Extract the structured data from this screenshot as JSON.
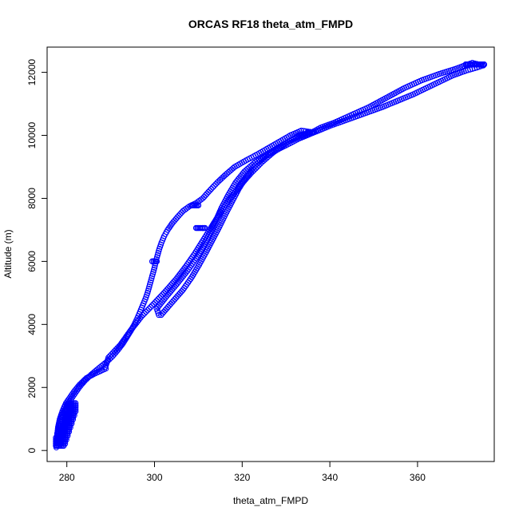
{
  "chart_data": {
    "type": "scatter",
    "title": "ORCAS RF18 theta_atm_FMPD",
    "xlabel": "theta_atm_FMPD",
    "ylabel": "Altitude (m)",
    "xlim": [
      275.5,
      377.5
    ],
    "ylim": [
      -350,
      12800
    ],
    "xticks": [
      280,
      300,
      320,
      340,
      360
    ],
    "yticks": [
      0,
      2000,
      4000,
      6000,
      8000,
      10000,
      12000
    ],
    "marker": "open-circle",
    "point_color": "#0000ff",
    "grid": false,
    "series": [
      {
        "points": [
          [
            277.6,
            100
          ],
          [
            277.7,
            250
          ],
          [
            277.8,
            400
          ],
          [
            277.9,
            600
          ],
          [
            278.2,
            800
          ],
          [
            278.6,
            1000
          ],
          [
            279.2,
            1200
          ],
          [
            279.9,
            1400
          ],
          [
            280.8,
            1600
          ],
          [
            281.8,
            1800
          ],
          [
            282.8,
            2000
          ],
          [
            284.0,
            2200
          ],
          [
            285.5,
            2400
          ],
          [
            287.2,
            2600
          ],
          [
            289.0,
            2800
          ],
          [
            290.5,
            3000
          ],
          [
            291.7,
            3200
          ],
          [
            292.8,
            3400
          ],
          [
            293.7,
            3600
          ],
          [
            294.6,
            3800
          ],
          [
            295.4,
            4000
          ],
          [
            296.1,
            4200
          ],
          [
            296.7,
            4400
          ],
          [
            297.3,
            4600
          ],
          [
            297.9,
            4800
          ],
          [
            298.4,
            5000
          ],
          [
            298.8,
            5200
          ],
          [
            299.2,
            5400
          ],
          [
            299.6,
            5600
          ],
          [
            300.0,
            5800
          ],
          [
            300.3,
            6000
          ],
          [
            300.7,
            6200
          ],
          [
            301.1,
            6400
          ],
          [
            301.6,
            6600
          ],
          [
            302.2,
            6800
          ],
          [
            303.0,
            7000
          ],
          [
            304.0,
            7200
          ],
          [
            305.2,
            7400
          ],
          [
            306.5,
            7600
          ],
          [
            308.0,
            7750
          ],
          [
            309.5,
            7850
          ],
          [
            311.0,
            8000
          ],
          [
            312.6,
            8250
          ],
          [
            314.3,
            8500
          ],
          [
            316.2,
            8750
          ],
          [
            318.3,
            9000
          ],
          [
            320.8,
            9200
          ],
          [
            323.5,
            9400
          ],
          [
            326.0,
            9600
          ],
          [
            328.5,
            9800
          ],
          [
            331.0,
            10000
          ],
          [
            333.5,
            10150
          ],
          [
            336.0,
            10100
          ],
          [
            338.0,
            10250
          ],
          [
            341.0,
            10400
          ],
          [
            345.0,
            10650
          ],
          [
            349.0,
            10900
          ],
          [
            353.0,
            11200
          ],
          [
            357.0,
            11500
          ],
          [
            361.0,
            11750
          ],
          [
            365.0,
            11950
          ],
          [
            368.5,
            12100
          ],
          [
            371.0,
            12230
          ],
          [
            372.5,
            12300
          ],
          [
            374.0,
            12250
          ],
          [
            375.0,
            12220
          ]
        ]
      },
      {
        "points": [
          [
            375.0,
            12220
          ],
          [
            373.5,
            12150
          ],
          [
            371.0,
            12050
          ],
          [
            368.0,
            11900
          ],
          [
            365.0,
            11700
          ],
          [
            362.0,
            11500
          ],
          [
            359.0,
            11300
          ],
          [
            355.5,
            11100
          ],
          [
            352.0,
            10900
          ],
          [
            348.0,
            10700
          ],
          [
            344.0,
            10500
          ],
          [
            340.0,
            10300
          ],
          [
            336.5,
            10100
          ],
          [
            333.0,
            9900
          ],
          [
            329.5,
            9650
          ],
          [
            326.0,
            9400
          ],
          [
            323.0,
            9150
          ],
          [
            320.5,
            8850
          ],
          [
            318.5,
            8500
          ],
          [
            316.8,
            8100
          ],
          [
            315.3,
            7700
          ],
          [
            314.0,
            7300
          ],
          [
            312.6,
            6900
          ],
          [
            311.2,
            6500
          ],
          [
            309.5,
            6100
          ],
          [
            307.5,
            5700
          ],
          [
            305.2,
            5300
          ],
          [
            302.8,
            4900
          ],
          [
            300.5,
            4500
          ],
          [
            301.0,
            4300
          ]
        ]
      },
      {
        "points": [
          [
            301.5,
            4300
          ],
          [
            304.0,
            4700
          ],
          [
            306.5,
            5100
          ],
          [
            308.5,
            5500
          ],
          [
            310.2,
            5900
          ],
          [
            311.8,
            6300
          ],
          [
            313.3,
            6700
          ],
          [
            314.8,
            7100
          ],
          [
            316.2,
            7500
          ],
          [
            317.7,
            7900
          ],
          [
            319.2,
            8300
          ],
          [
            321.0,
            8700
          ],
          [
            323.0,
            9050
          ],
          [
            325.5,
            9350
          ],
          [
            328.0,
            9600
          ],
          [
            330.5,
            9800
          ],
          [
            333.0,
            9950
          ],
          [
            335.5,
            10050
          ]
        ]
      },
      {
        "points": [
          [
            336.0,
            10100
          ],
          [
            333.0,
            10000
          ],
          [
            330.0,
            9750
          ],
          [
            327.0,
            9450
          ],
          [
            324.5,
            9150
          ],
          [
            322.0,
            8800
          ],
          [
            319.5,
            8400
          ],
          [
            317.0,
            7950
          ],
          [
            314.8,
            7500
          ],
          [
            312.8,
            7050
          ],
          [
            311.0,
            6650
          ],
          [
            309.2,
            6250
          ],
          [
            307.2,
            5850
          ],
          [
            305.0,
            5450
          ],
          [
            302.5,
            5050
          ],
          [
            299.8,
            4650
          ],
          [
            297.0,
            4250
          ],
          [
            294.5,
            3800
          ],
          [
            292.2,
            3350
          ],
          [
            289.5,
            2950
          ],
          [
            288.8,
            2650
          ]
        ]
      },
      {
        "points": [
          [
            288.9,
            2600
          ],
          [
            286.5,
            2450
          ],
          [
            284.5,
            2300
          ],
          [
            283.0,
            2100
          ],
          [
            281.8,
            1900
          ],
          [
            280.8,
            1700
          ],
          [
            279.8,
            1500
          ],
          [
            279.0,
            1250
          ],
          [
            278.4,
            1000
          ],
          [
            278.0,
            750
          ],
          [
            277.8,
            500
          ],
          [
            277.7,
            300
          ],
          [
            277.6,
            150
          ]
        ]
      }
    ],
    "clusters": [
      {
        "x": [
          309.5,
          311.5
        ],
        "y": 7060
      },
      {
        "x": [
          277.5,
          282.0
        ],
        "y": [
          150,
          1500
        ]
      },
      {
        "x": [
          335.0,
          336.2
        ],
        "y": 10100
      },
      {
        "x": [
          371.0,
          375.2
        ],
        "y": 12250
      },
      {
        "x": [
          308.5,
          310.0
        ],
        "y": 7780
      },
      {
        "x": [
          299.5,
          300.5
        ],
        "y": 6000
      }
    ]
  }
}
